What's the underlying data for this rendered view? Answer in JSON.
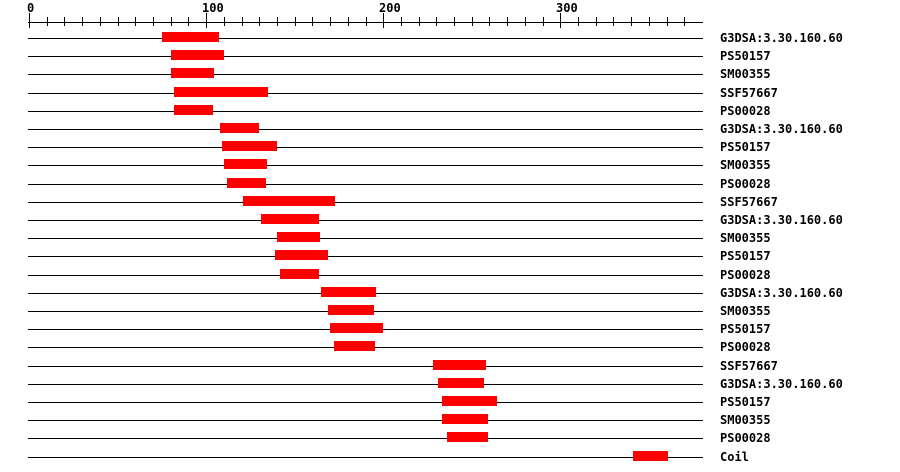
{
  "figure": {
    "background": "#ffffff",
    "bar_color": "#ff0000",
    "line_color": "#000000",
    "text_color": "#000000"
  },
  "chart_data": {
    "type": "bar",
    "orientation": "horizontal-span",
    "title": "",
    "xlabel": "",
    "ylabel": "",
    "legend": "none",
    "grid": false,
    "axis": {
      "min": 0,
      "max": 380,
      "major_ticks": [
        0,
        100,
        200,
        300
      ],
      "minor_tick_step": 10,
      "last_minor_tick": 370
    },
    "rows": [
      {
        "label": "G3DSA:3.30.160.60",
        "start": 75,
        "end": 107
      },
      {
        "label": "PS50157",
        "start": 80,
        "end": 110
      },
      {
        "label": "SM00355",
        "start": 80,
        "end": 104
      },
      {
        "label": "SSF57667",
        "start": 82,
        "end": 135
      },
      {
        "label": "PS00028",
        "start": 82,
        "end": 104
      },
      {
        "label": "G3DSA:3.30.160.60",
        "start": 108,
        "end": 130
      },
      {
        "label": "PS50157",
        "start": 109,
        "end": 140
      },
      {
        "label": "SM00355",
        "start": 110,
        "end": 134
      },
      {
        "label": "PS00028",
        "start": 112,
        "end": 134
      },
      {
        "label": "SSF57667",
        "start": 121,
        "end": 173
      },
      {
        "label": "G3DSA:3.30.160.60",
        "start": 131,
        "end": 164
      },
      {
        "label": "SM00355",
        "start": 140,
        "end": 164
      },
      {
        "label": "PS50157",
        "start": 139,
        "end": 169
      },
      {
        "label": "PS00028",
        "start": 142,
        "end": 164
      },
      {
        "label": "G3DSA:3.30.160.60",
        "start": 165,
        "end": 196
      },
      {
        "label": "SM00355",
        "start": 169,
        "end": 195
      },
      {
        "label": "PS50157",
        "start": 170,
        "end": 200
      },
      {
        "label": "PS00028",
        "start": 172,
        "end": 195
      },
      {
        "label": "SSF57667",
        "start": 228,
        "end": 258
      },
      {
        "label": "G3DSA:3.30.160.60",
        "start": 231,
        "end": 257
      },
      {
        "label": "PS50157",
        "start": 233,
        "end": 264
      },
      {
        "label": "SM00355",
        "start": 233,
        "end": 259
      },
      {
        "label": "PS00028",
        "start": 236,
        "end": 259
      },
      {
        "label": "Coil",
        "start": 341,
        "end": 361
      }
    ]
  }
}
